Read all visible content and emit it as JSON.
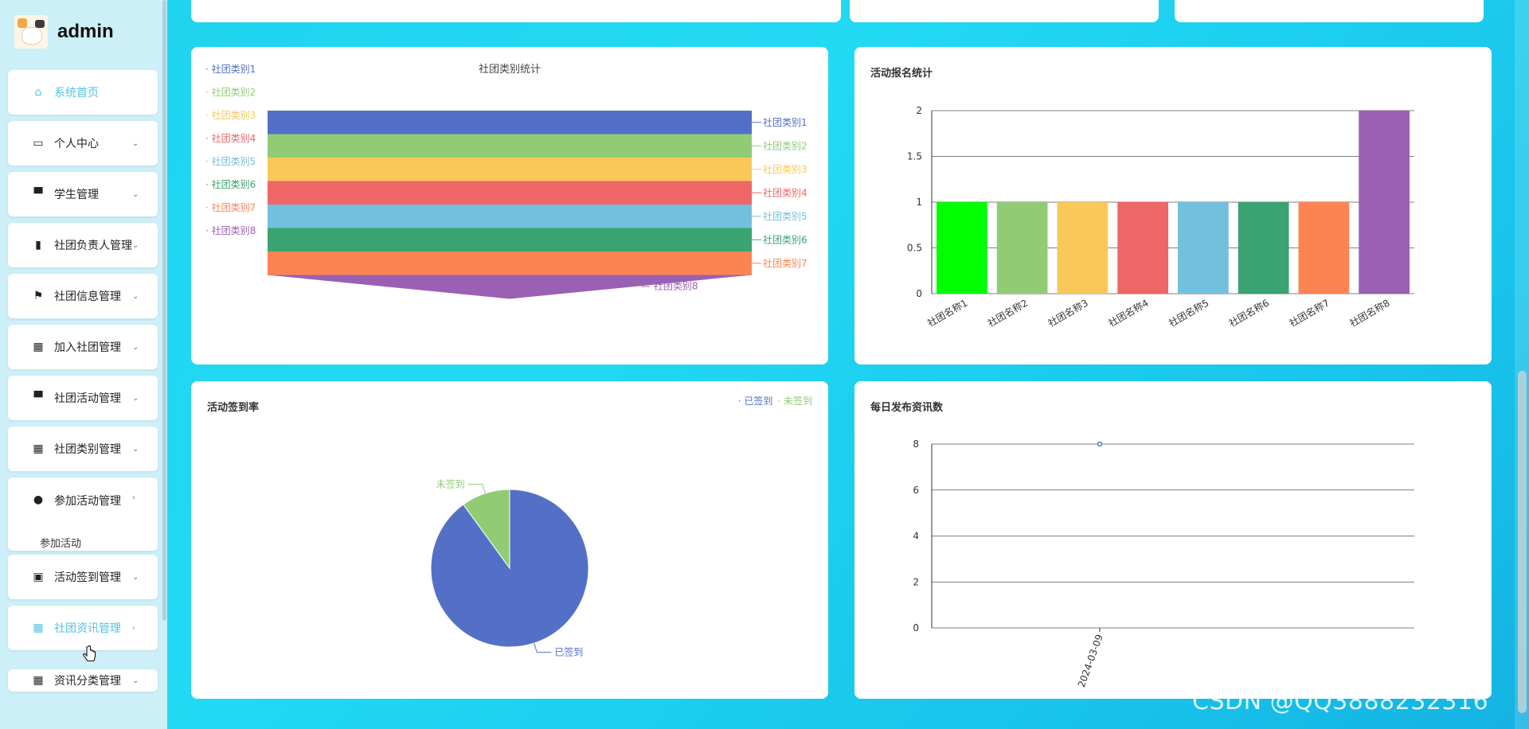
{
  "brand": {
    "name": "admin"
  },
  "sidebar": {
    "items": [
      {
        "label": "系统首页",
        "icon": "home-icon",
        "arrow": false,
        "active": true
      },
      {
        "label": "个人中心",
        "icon": "calendar-icon",
        "arrow": true
      },
      {
        "label": "学生管理",
        "icon": "monitor-icon",
        "arrow": true
      },
      {
        "label": "社团负责人管理",
        "icon": "bar-chart-icon",
        "arrow": true
      },
      {
        "label": "社团信息管理",
        "icon": "flag-icon",
        "arrow": true
      },
      {
        "label": "加入社团管理",
        "icon": "grid-icon",
        "arrow": true
      },
      {
        "label": "社团活动管理",
        "icon": "monitor-icon",
        "arrow": true
      },
      {
        "label": "社团类别管理",
        "icon": "grid-icon",
        "arrow": true
      },
      {
        "label": "参加活动管理",
        "icon": "user-icon",
        "arrow": true
      },
      {
        "label": "活动签到管理",
        "icon": "clipboard-icon",
        "arrow": true
      },
      {
        "label": "社团资讯管理",
        "icon": "grid-icon",
        "arrow": true,
        "active": true
      },
      {
        "label": "资讯分类管理",
        "icon": "grid-icon",
        "arrow": true
      }
    ],
    "submenu": {
      "label": "参加活动"
    }
  },
  "colors": {
    "palette": [
      "#5470c6",
      "#91cc75",
      "#fac858",
      "#ee6666",
      "#73c0de",
      "#3ba272",
      "#fc8452",
      "#9a60b4"
    ],
    "accent": "#4fc3df"
  },
  "panels": {
    "funnel": {
      "title": "社团类别统计"
    },
    "bar": {
      "title": "活动报名统计"
    },
    "pie": {
      "title": "活动签到率"
    },
    "line": {
      "title": "每日发布资讯数"
    }
  },
  "chart_data": [
    {
      "type": "funnel",
      "title": "社团类别统计",
      "categories": [
        "社团类别1",
        "社团类别2",
        "社团类别3",
        "社团类别4",
        "社团类别5",
        "社团类别6",
        "社团类别7",
        "社团类别8"
      ],
      "values": [
        1,
        1,
        1,
        1,
        1,
        1,
        1,
        0
      ],
      "legend": "left-vertical"
    },
    {
      "type": "bar",
      "title": "活动报名统计",
      "categories": [
        "社团名称1",
        "社团名称2",
        "社团名称3",
        "社团名称4",
        "社团名称5",
        "社团名称6",
        "社团名称7",
        "社团名称8"
      ],
      "values": [
        1,
        1,
        1,
        1,
        1,
        1,
        1,
        2
      ],
      "bar_colors": [
        "#00ff00",
        "#91cc75",
        "#fac858",
        "#ee6666",
        "#73c0de",
        "#3ba272",
        "#fc8452",
        "#9a60b4"
      ],
      "ylim": [
        0,
        2
      ],
      "yticks": [
        "0",
        "0.5",
        "1",
        "1.5",
        "2"
      ],
      "grid": true
    },
    {
      "type": "pie",
      "title": "活动签到率",
      "series": [
        {
          "name": "已签到",
          "value": 9,
          "color": "#5470c6"
        },
        {
          "name": "未签到",
          "value": 1,
          "color": "#91cc75"
        }
      ],
      "legend": "top-right"
    },
    {
      "type": "line",
      "title": "每日发布资讯数",
      "x": [
        "2024-03-09"
      ],
      "values": [
        8
      ],
      "ylim": [
        0,
        8
      ],
      "yticks": [
        "0",
        "2",
        "4",
        "6",
        "8"
      ],
      "grid": true
    }
  ],
  "watermark": "CSDN @QQ3888232316"
}
